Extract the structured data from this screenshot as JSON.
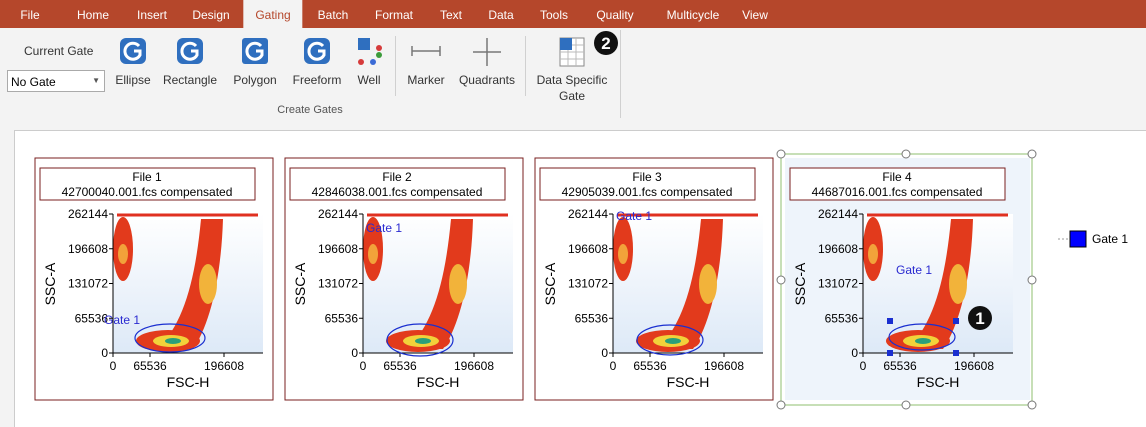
{
  "tabs": [
    "File",
    "Home",
    "Insert",
    "Design",
    "Gating",
    "Batch",
    "Format",
    "Text",
    "Data",
    "Tools",
    "Quality",
    "Multicycle",
    "View"
  ],
  "ribbon": {
    "current_gate_label": "Current Gate",
    "current_gate_value": "No Gate",
    "buttons": [
      "Ellipse",
      "Rectangle",
      "Polygon",
      "Freeform",
      "Well",
      "Marker",
      "Quadrants",
      "Data Specific Gate"
    ],
    "group_label": "Create Gates"
  },
  "callouts": [
    "1",
    "2"
  ],
  "plots": [
    {
      "title": "File 1",
      "subtitle": "42700040.001.fcs compensated",
      "gate_label": "Gate 1"
    },
    {
      "title": "File 2",
      "subtitle": "42846038.001.fcs compensated",
      "gate_label": "Gate 1"
    },
    {
      "title": "File 3",
      "subtitle": "42905039.001.fcs compensated",
      "gate_label": "Gate 1"
    },
    {
      "title": "File 4",
      "subtitle": "44687016.001.fcs compensated",
      "gate_label": "Gate 1"
    }
  ],
  "axes": {
    "y_label": "SSC-A",
    "x_label": "FSC-H",
    "yticks": [
      0,
      65536,
      131072,
      196608,
      262144
    ],
    "xticks": [
      0,
      65536,
      196608
    ]
  },
  "legend": {
    "items": [
      {
        "label": "Gate 1",
        "color": "#0000ff"
      }
    ]
  }
}
